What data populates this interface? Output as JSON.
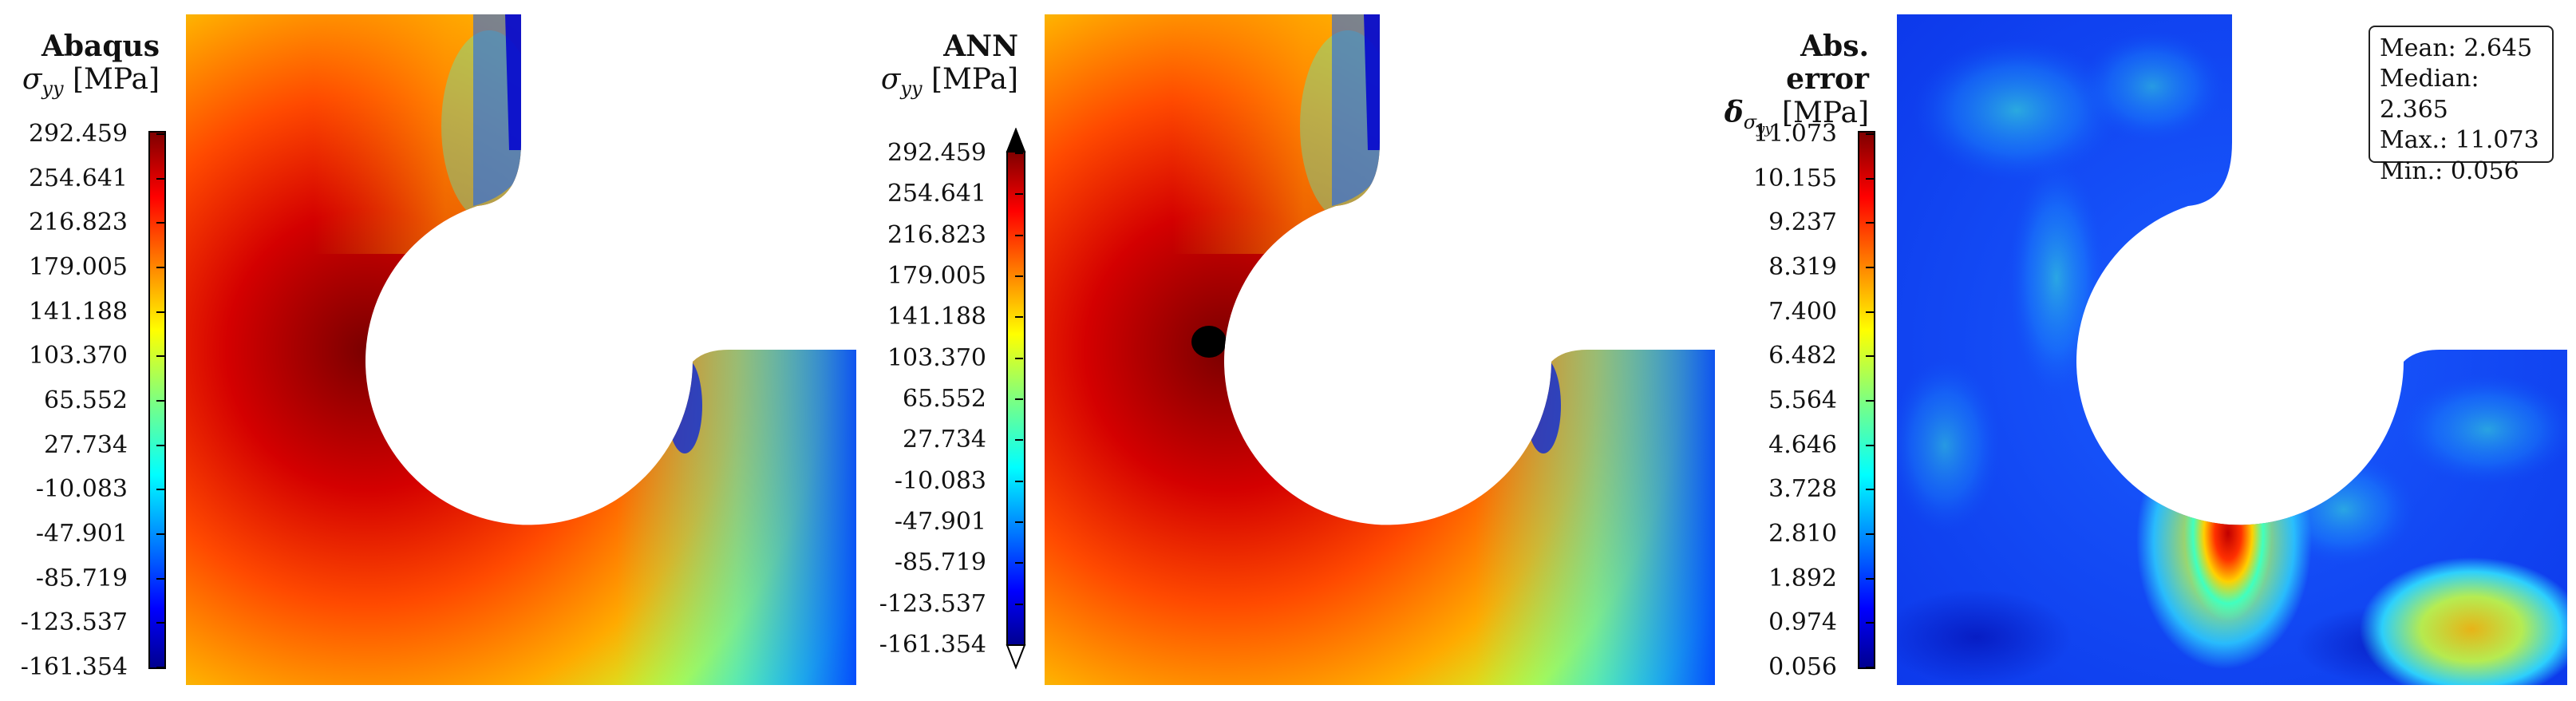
{
  "panels": [
    {
      "title": "Abaqus",
      "quantity_symbol": "σ",
      "quantity_sub": "yy",
      "unit": "[MPa]",
      "colorbar_ticks": [
        "292.459",
        "254.641",
        "216.823",
        "179.005",
        "141.188",
        "103.370",
        "65.552",
        "27.734",
        "-10.083",
        "-47.901",
        "-85.719",
        "-123.537",
        "-161.354"
      ],
      "colormap": "jet"
    },
    {
      "title": "ANN",
      "quantity_symbol": "σ",
      "quantity_sub": "yy",
      "unit": "[MPa]",
      "colorbar_ticks": [
        "292.459",
        "254.641",
        "216.823",
        "179.005",
        "141.188",
        "103.370",
        "65.552",
        "27.734",
        "-10.083",
        "-47.901",
        "-85.719",
        "-123.537",
        "-161.354"
      ],
      "colormap": "jet",
      "colorbar_extensions": "both"
    },
    {
      "title": "Abs. error",
      "quantity_symbol": "δ",
      "quantity_sub": "σ",
      "quantity_subsub": "yy",
      "unit": "[MPa]",
      "colorbar_ticks": [
        "11.073",
        "10.155",
        "9.237",
        "8.319",
        "7.400",
        "6.482",
        "5.564",
        "4.646",
        "3.728",
        "2.810",
        "1.892",
        "0.974",
        "0.056"
      ],
      "colormap": "jet",
      "stats": {
        "mean": "Mean: 2.645",
        "median": "Median: 2.365",
        "max": "Max.: 11.073",
        "min": "Min.: 0.056"
      }
    }
  ]
}
